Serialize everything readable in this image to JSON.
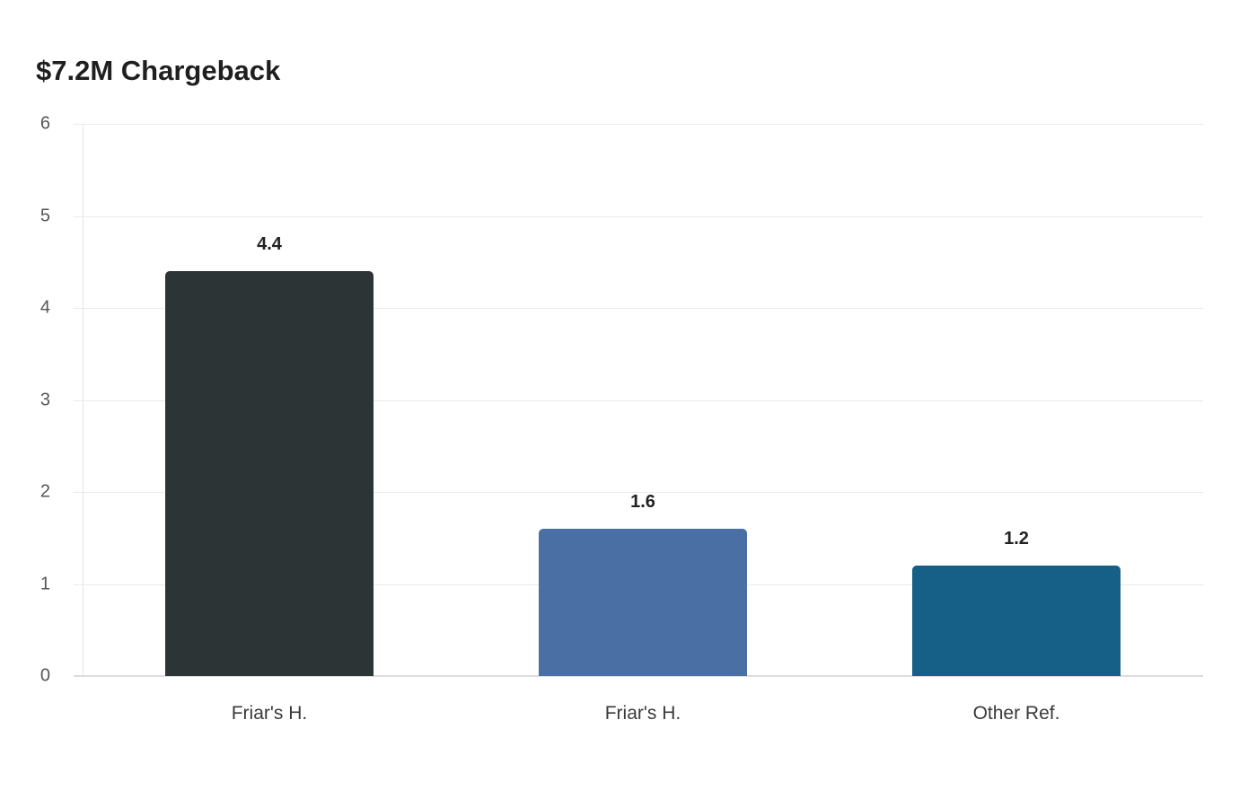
{
  "title": "$7.2M Chargeback",
  "chart_data": {
    "type": "bar",
    "title": "$7.2M Chargeback",
    "categories": [
      "Friar's H.",
      "Friar's H.",
      "Other Ref."
    ],
    "values": [
      4.4,
      1.6,
      1.2
    ],
    "colors": [
      "#2d3436",
      "#4a6fa5",
      "#166088"
    ],
    "xlabel": "",
    "ylabel": "",
    "ylim": [
      0,
      6
    ],
    "yticks": [
      "0",
      "1",
      "2",
      "3",
      "4",
      "5",
      "6"
    ],
    "grid": true,
    "legend": null,
    "data_labels": [
      "4.4",
      "1.6",
      "1.2"
    ]
  }
}
